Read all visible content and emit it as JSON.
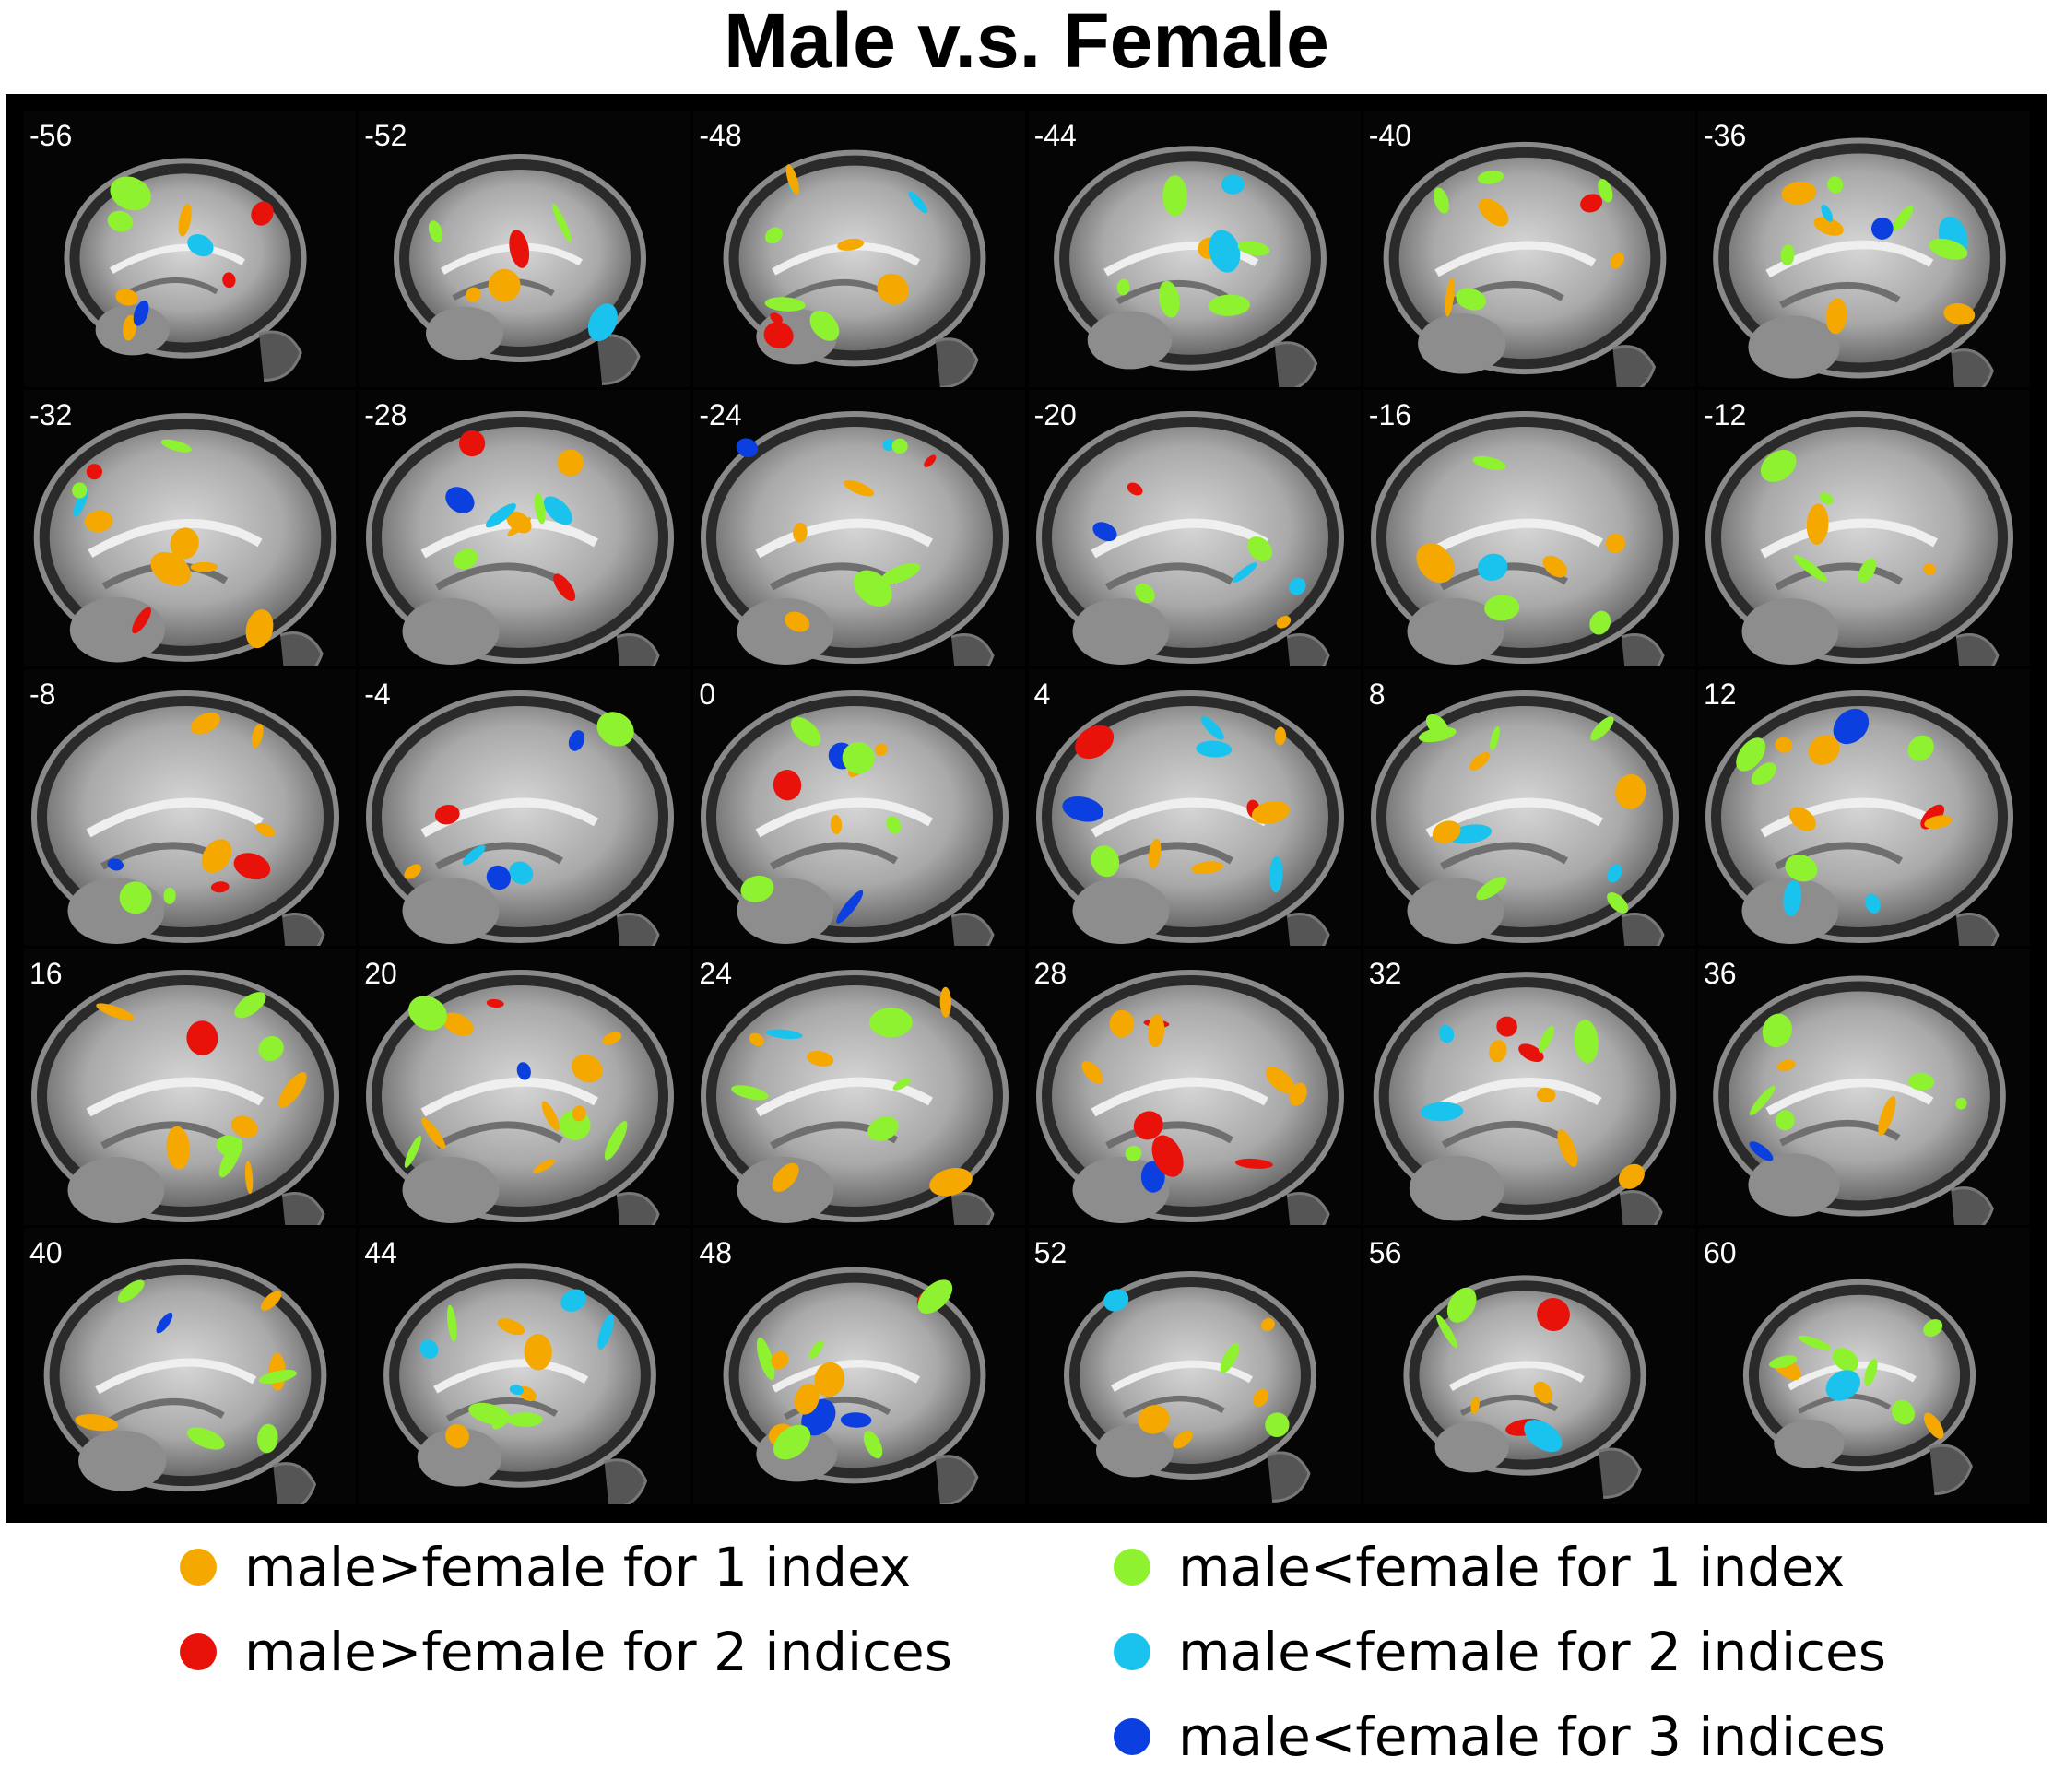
{
  "figure": {
    "title": "Male v.s. Female",
    "slices": [
      "-56",
      "-52",
      "-48",
      "-44",
      "-40",
      "-36",
      "-32",
      "-28",
      "-24",
      "-20",
      "-16",
      "-12",
      "-8",
      "-4",
      "0",
      "4",
      "8",
      "12",
      "16",
      "20",
      "24",
      "28",
      "32",
      "36",
      "40",
      "44",
      "48",
      "52",
      "56",
      "60"
    ]
  },
  "legend": {
    "items": [
      {
        "label": "male>female for 1 index",
        "color": "#f5a800"
      },
      {
        "label": "male>female for 2 indices",
        "color": "#e8120b"
      },
      {
        "label": "male<female for 1 index",
        "color": "#8ef230"
      },
      {
        "label": "male<female for 2 indices",
        "color": "#19c3ee"
      },
      {
        "label": "male<female for 3 indices",
        "color": "#0b3fe0"
      }
    ]
  }
}
